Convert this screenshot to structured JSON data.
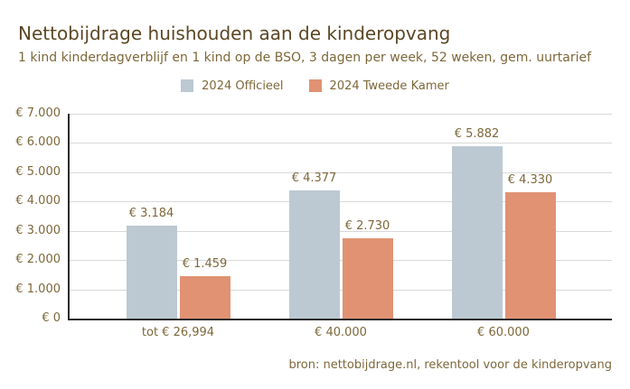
{
  "colors": {
    "title": "#5b4723",
    "text": "#7d683a",
    "axis": "#2b2b2b",
    "gridline": "#d9d9d9",
    "background": "#ffffff",
    "series_officieel": "#bcc9d2",
    "series_tweede_kamer": "#e09273"
  },
  "chart_data": {
    "type": "bar",
    "title": "Nettobijdrage huishouden aan de kinderopvang",
    "subtitle": "1 kind kinderdagverblijf en 1 kind op de BSO, 3 dagen per week, 52 weken, gem. uurtarief",
    "categories": [
      "tot € 26,994",
      "€ 40.000",
      "€ 60.000"
    ],
    "series": [
      {
        "name": "2024 Officieel",
        "color": "#bcc9d2",
        "values": [
          3184,
          4377,
          5882
        ],
        "labels": [
          "€ 3.184",
          "€ 4.377",
          "€ 5.882"
        ]
      },
      {
        "name": "2024 Tweede Kamer",
        "color": "#e09273",
        "values": [
          1459,
          2730,
          4330
        ],
        "labels": [
          "€ 1.459",
          "€ 2.730",
          "€ 4.330"
        ]
      }
    ],
    "y_axis": {
      "min": 0,
      "max": 7000,
      "tick_step": 1000,
      "ticks": [
        {
          "value": 0,
          "label": "€ 0"
        },
        {
          "value": 1000,
          "label": "€ 1.000"
        },
        {
          "value": 2000,
          "label": "€ 2.000"
        },
        {
          "value": 3000,
          "label": "€ 3.000"
        },
        {
          "value": 4000,
          "label": "€ 4.000"
        },
        {
          "value": 5000,
          "label": "€ 5.000"
        },
        {
          "value": 6000,
          "label": "€ 6.000"
        },
        {
          "value": 7000,
          "label": "€ 7.000"
        }
      ]
    },
    "grid": true,
    "legend_position": "top",
    "source": "bron: nettobijdrage.nl, rekentool voor de kinderopvang"
  }
}
